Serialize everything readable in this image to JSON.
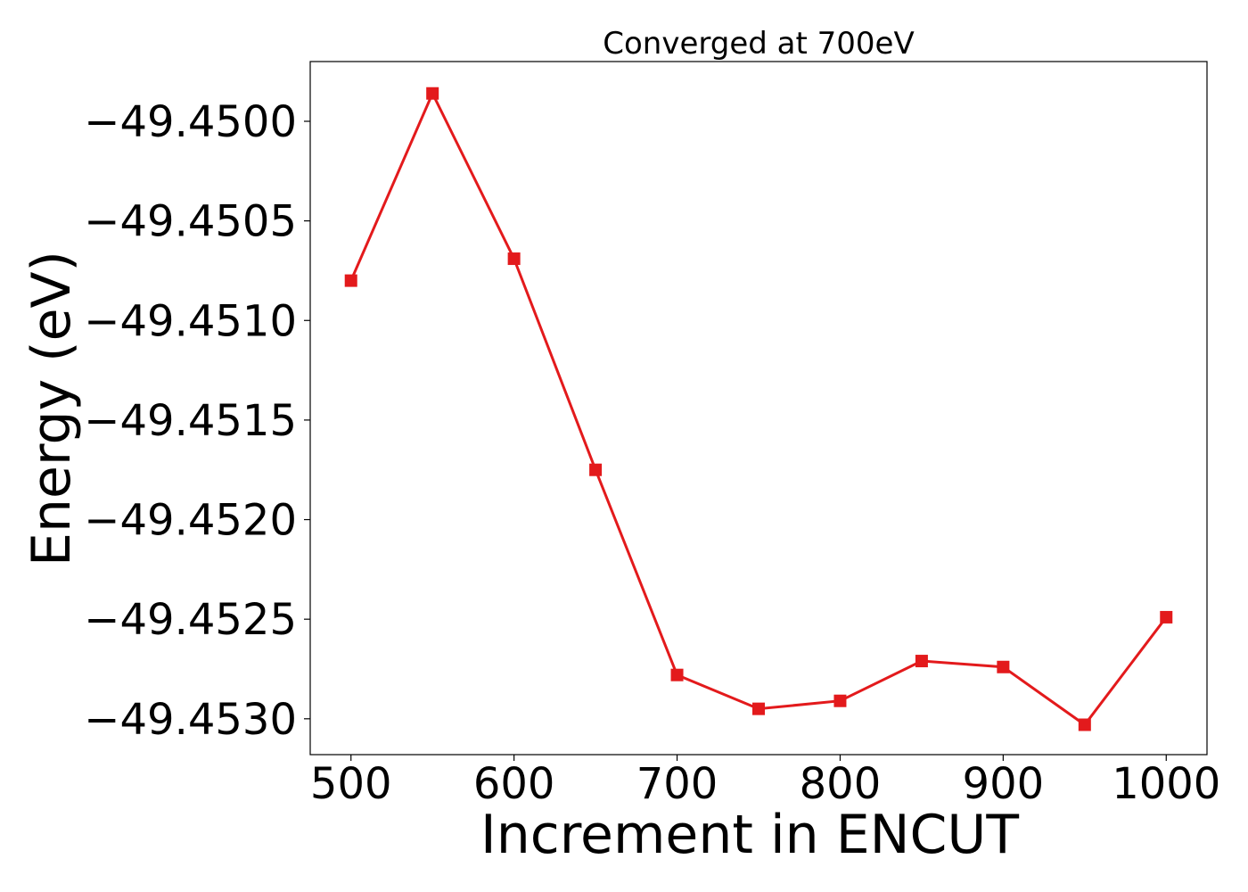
{
  "chart_data": {
    "type": "line",
    "title": "Converged at 700eV",
    "xlabel": "Increment in ENCUT",
    "ylabel": "Energy (eV)",
    "xlim": [
      475,
      1025
    ],
    "ylim": [
      -49.45318,
      -49.4497
    ],
    "xticks": [
      500,
      600,
      700,
      800,
      900,
      1000
    ],
    "xtick_labels": [
      "500",
      "600",
      "700",
      "800",
      "900",
      "1000"
    ],
    "yticks": [
      -49.45,
      -49.4505,
      -49.451,
      -49.4515,
      -49.452,
      -49.4525,
      -49.453
    ],
    "ytick_labels": [
      "−49.4500",
      "−49.4505",
      "−49.4510",
      "−49.4515",
      "−49.4520",
      "−49.4525",
      "−49.4530"
    ],
    "grid": false,
    "series": [
      {
        "color": "#e31a1c",
        "marker": "square",
        "x": [
          500,
          550,
          600,
          650,
          700,
          750,
          800,
          850,
          900,
          950,
          1000
        ],
        "y": [
          -49.4508,
          -49.44986,
          -49.45069,
          -49.45175,
          -49.45278,
          -49.45295,
          -49.45291,
          -49.45271,
          -49.45274,
          -49.45303,
          -49.45249
        ]
      }
    ]
  }
}
